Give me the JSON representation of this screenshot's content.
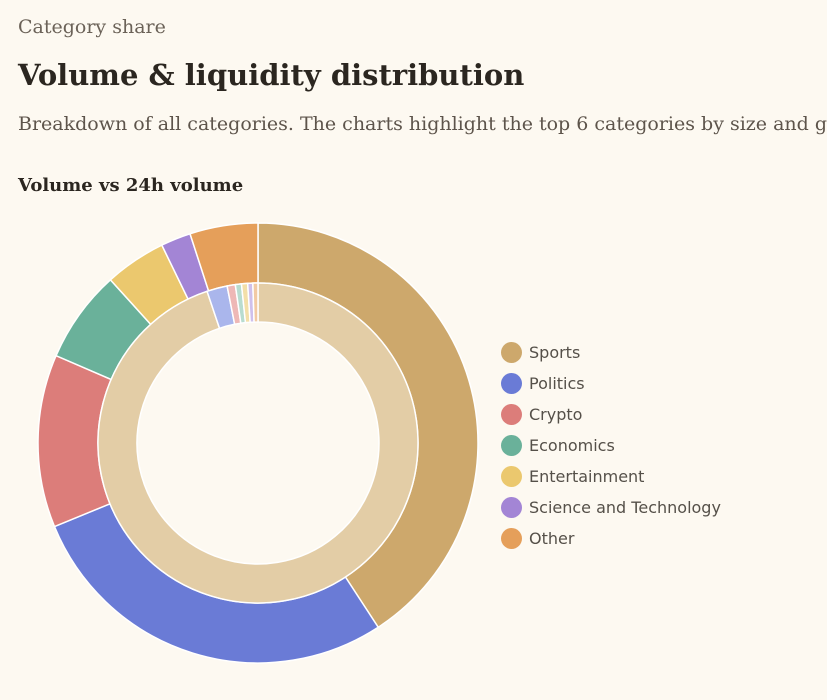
{
  "header": {
    "eyebrow": "Category share",
    "title": "Volume & liquidity distribution",
    "subtitle": "Breakdown of all categories. The charts highlight the top 6 categories by size and g"
  },
  "chart_data": {
    "type": "pie",
    "variant": "nested-donut",
    "title": "Volume vs 24h volume",
    "legend_position": "right",
    "categories": [
      "Sports",
      "Politics",
      "Crypto",
      "Economics",
      "Entertainment",
      "Science and Technology",
      "Other"
    ],
    "colors": [
      "#cda86c",
      "#6a7bd6",
      "#dc7d7a",
      "#6ab19a",
      "#ebc86e",
      "#a385d5",
      "#e59f5a"
    ],
    "series": [
      {
        "name": "Volume",
        "ring": "outer",
        "values": [
          40.8,
          28.0,
          12.7,
          6.8,
          4.5,
          2.2,
          5.0
        ]
      },
      {
        "name": "24h volume",
        "ring": "inner",
        "values": [
          92.0,
          2.0,
          0.8,
          0.6,
          0.6,
          0.5,
          0.5
        ],
        "colors": [
          "#e3cda6",
          "#aab6ec",
          "#eeb8b6",
          "#b8dccf",
          "#f3dfa8",
          "#cfc0ec",
          "#f2caa4"
        ]
      }
    ]
  }
}
